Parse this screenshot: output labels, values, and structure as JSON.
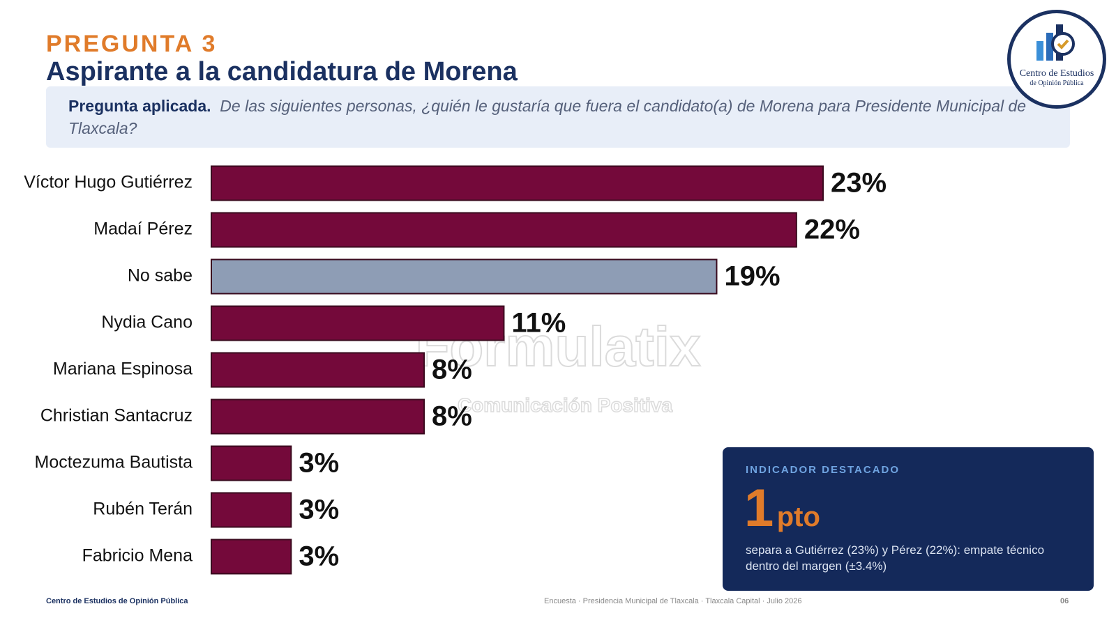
{
  "header": {
    "kicker": "PREGUNTA 3",
    "title": "Aspirante a la candidatura de Morena"
  },
  "question": {
    "label": "Pregunta aplicada.",
    "text": "De las siguientes personas, ¿quién le gustaría que fuera el candidato(a) de Morena para Presidente Municipal de Tlaxcala?"
  },
  "logo": {
    "line1": "Centro de Estudios",
    "line2": "de Opinión Pública"
  },
  "watermark": {
    "brand": "Fórmulatix",
    "tagline": "Comunicación Positiva"
  },
  "chart_data": {
    "type": "bar",
    "orientation": "horizontal",
    "categories": [
      "Víctor Hugo Gutiérrez",
      "Madaí Pérez",
      "No sabe",
      "Nydia Cano",
      "Mariana Espinosa",
      "Christian Santacruz",
      "Moctezuma Bautista",
      "Rubén Terán",
      "Fabricio Mena"
    ],
    "values": [
      23,
      22,
      19,
      11,
      8,
      8,
      3,
      3,
      3
    ],
    "value_labels": [
      "23%",
      "22%",
      "19%",
      "11%",
      "8%",
      "8%",
      "3%",
      "3%",
      "3%"
    ],
    "colors": [
      "#74093a",
      "#74093a",
      "#8e9db5",
      "#74093a",
      "#74093a",
      "#74093a",
      "#74093a",
      "#74093a",
      "#74093a"
    ]
  },
  "indicator": {
    "label": "INDICADOR DESTACADO",
    "number": 1,
    "unit": "pto",
    "text": "separa a Gutiérrez (23%) y Pérez (22%): empate técnico dentro del margen (±3.4%)"
  },
  "footer": {
    "left": "Centro de Estudios de Opinión Pública",
    "center": "Encuesta · Presidencia Municipal de Tlaxcala · Tlaxcala Capital · Julio 2026",
    "page": "06"
  }
}
